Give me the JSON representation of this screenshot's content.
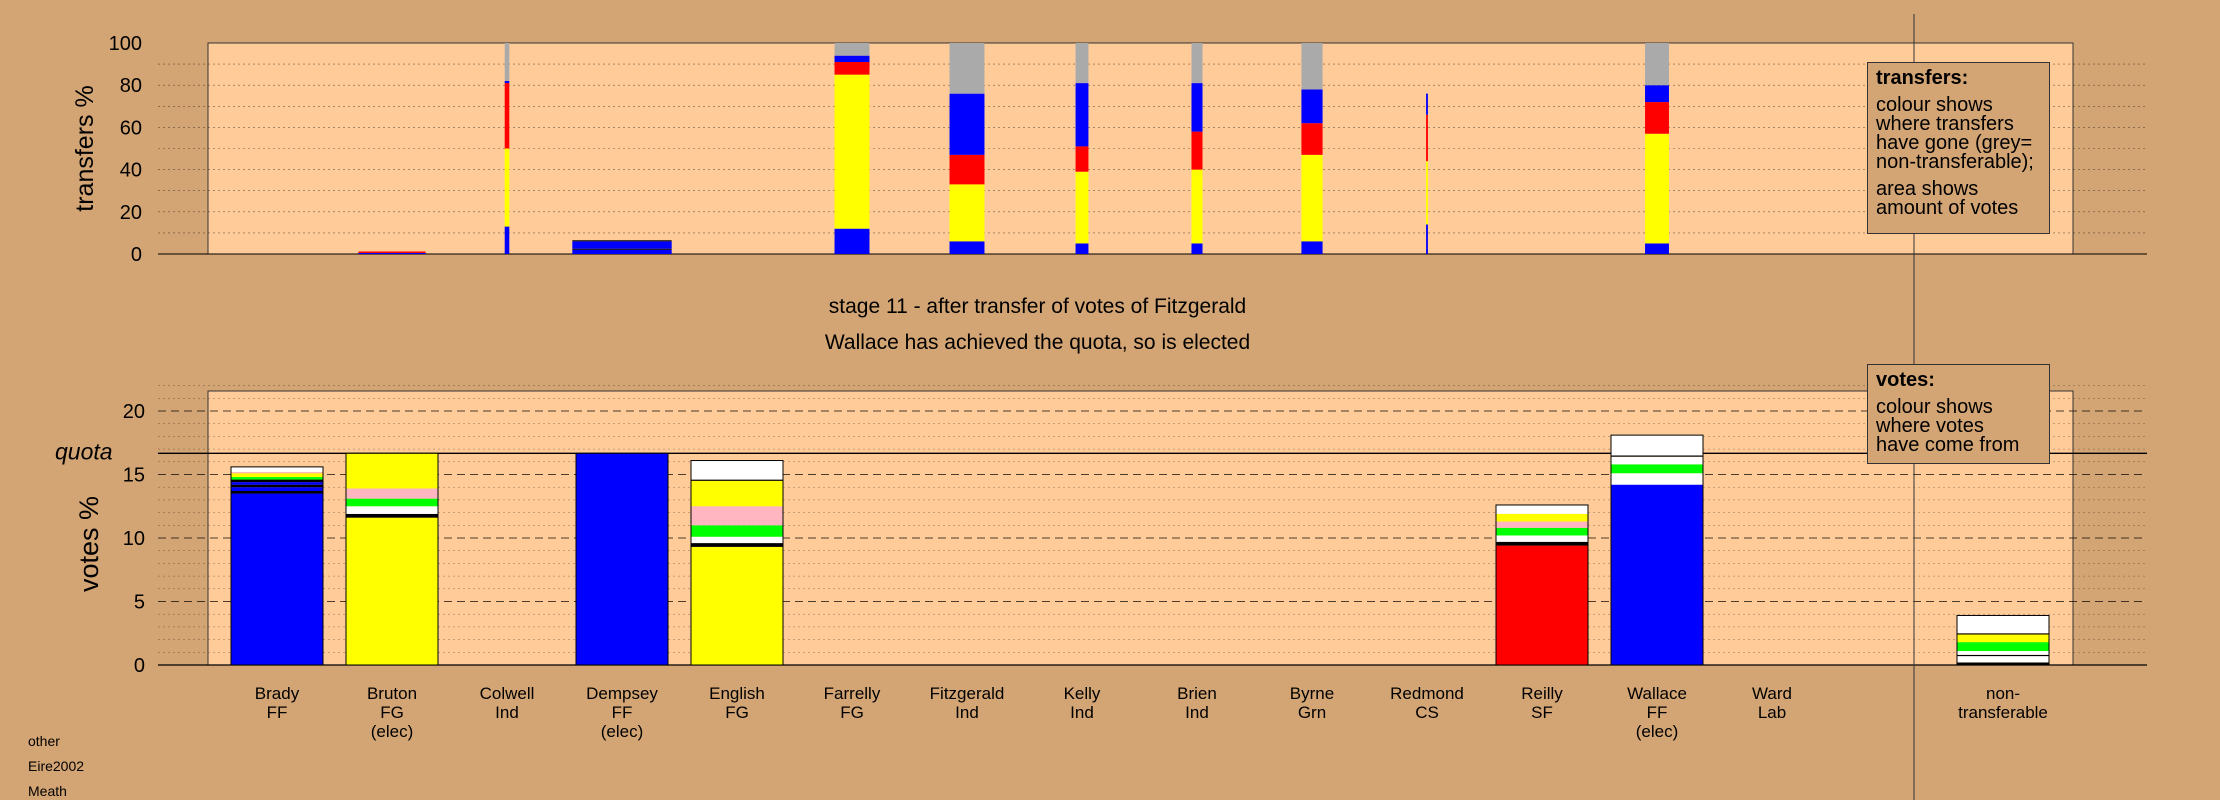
{
  "chart_data": [
    {
      "type": "bar",
      "stacked": true,
      "panel": "transfers",
      "ylabel": "transfers %",
      "ylim": [
        0,
        100
      ],
      "yticks": [
        0,
        20,
        40,
        60,
        80,
        100
      ],
      "grid": "dotted horizontal",
      "categories": [
        "Brady",
        "Bruton",
        "Colwell",
        "Dempsey",
        "English",
        "Farrelly",
        "Fitzgerald",
        "Kelly",
        "Brien",
        "Byrne",
        "Redmond",
        "Reilly",
        "Wallace",
        "Ward"
      ],
      "bar_widths_relative": [
        0,
        0.73,
        0.05,
        1.08,
        0,
        0.38,
        0.38,
        0.14,
        0.12,
        0.23,
        0.02,
        0,
        0.26,
        0
      ],
      "segments": [
        [],
        [
          {
            "color": "#0000ff",
            "value": 0.5
          },
          {
            "color": "#ff0000",
            "value": 0.7
          }
        ],
        [
          {
            "color": "#0000ff",
            "value": 13
          },
          {
            "color": "#ffff00",
            "value": 37
          },
          {
            "color": "#ff0000",
            "value": 31
          },
          {
            "color": "#0000ff",
            "value": 1
          },
          {
            "color": "#aaaaaa",
            "value": 18
          }
        ],
        [
          {
            "color": "#0000ff",
            "value": 2
          },
          {
            "color": "#000000",
            "value": 0.5
          },
          {
            "color": "#0000ff",
            "value": 3.5
          },
          {
            "color": "#000000",
            "value": 0.5
          }
        ],
        [],
        [
          {
            "color": "#0000ff",
            "value": 12
          },
          {
            "color": "#ffff00",
            "value": 73
          },
          {
            "color": "#ff0000",
            "value": 6
          },
          {
            "color": "#0000ff",
            "value": 3
          },
          {
            "color": "#aaaaaa",
            "value": 6
          }
        ],
        [
          {
            "color": "#0000ff",
            "value": 6
          },
          {
            "color": "#ffff00",
            "value": 27
          },
          {
            "color": "#ff0000",
            "value": 14
          },
          {
            "color": "#0000ff",
            "value": 29
          },
          {
            "color": "#aaaaaa",
            "value": 24
          }
        ],
        [
          {
            "color": "#0000ff",
            "value": 5
          },
          {
            "color": "#ffff00",
            "value": 34
          },
          {
            "color": "#ff0000",
            "value": 12
          },
          {
            "color": "#0000ff",
            "value": 30
          },
          {
            "color": "#aaaaaa",
            "value": 19
          }
        ],
        [
          {
            "color": "#0000ff",
            "value": 5
          },
          {
            "color": "#ffff00",
            "value": 35
          },
          {
            "color": "#ff0000",
            "value": 18
          },
          {
            "color": "#0000ff",
            "value": 23
          },
          {
            "color": "#aaaaaa",
            "value": 19
          }
        ],
        [
          {
            "color": "#0000ff",
            "value": 6
          },
          {
            "color": "#ffff00",
            "value": 41
          },
          {
            "color": "#ff0000",
            "value": 15
          },
          {
            "color": "#0000ff",
            "value": 16
          },
          {
            "color": "#aaaaaa",
            "value": 22
          }
        ],
        [
          {
            "color": "#0000ff",
            "value": 14
          },
          {
            "color": "#ffff00",
            "value": 30
          },
          {
            "color": "#ff0000",
            "value": 22
          },
          {
            "color": "#0000ff",
            "value": 10
          }
        ],
        [],
        [
          {
            "color": "#0000ff",
            "value": 5
          },
          {
            "color": "#ffff00",
            "value": 52
          },
          {
            "color": "#ff0000",
            "value": 15
          },
          {
            "color": "#0000ff",
            "value": 8
          },
          {
            "color": "#aaaaaa",
            "value": 20
          }
        ],
        []
      ]
    },
    {
      "type": "bar",
      "stacked": true,
      "panel": "votes",
      "ylabel": "votes %",
      "ylim": [
        0,
        22
      ],
      "yticks": [
        0,
        5,
        10,
        15,
        20
      ],
      "quota": 16.67,
      "quota_label": "quota",
      "grid": "dotted minor, dashed major",
      "categories": [
        "Brady",
        "Bruton",
        "Colwell",
        "Dempsey",
        "English",
        "Farrelly",
        "Fitzgerald",
        "Kelly",
        "Brien",
        "Byrne",
        "Redmond",
        "Reilly",
        "Wallace",
        "Ward",
        "non-transferable"
      ],
      "segments": [
        [
          {
            "color": "#0000ff",
            "value": 13.5
          },
          {
            "color": "#000000",
            "value": 0.2
          },
          {
            "color": "#0000ff",
            "value": 0.3
          },
          {
            "color": "#000000",
            "value": 0.2
          },
          {
            "color": "#0000ff",
            "value": 0.2
          },
          {
            "color": "#000000",
            "value": 0.2
          },
          {
            "color": "#00ff00",
            "value": 0.2
          },
          {
            "color": "#ffff00",
            "value": 0.3
          },
          {
            "color": "#ffb6c1",
            "value": 0.1
          },
          {
            "color": "#ffffff",
            "value": 0.4
          }
        ],
        [
          {
            "color": "#ffff00",
            "value": 11.6
          },
          {
            "color": "#000000",
            "value": 0.3
          },
          {
            "color": "#ffffff",
            "value": 0.6
          },
          {
            "color": "#00ff00",
            "value": 0.6
          },
          {
            "color": "#ffb6c1",
            "value": 0.8
          },
          {
            "color": "#ffff00",
            "value": 2.77
          }
        ],
        [],
        [
          {
            "color": "#0000ff",
            "value": 16.67
          }
        ],
        [
          {
            "color": "#ffff00",
            "value": 9.3
          },
          {
            "color": "#000000",
            "value": 0.3
          },
          {
            "color": "#ffffff",
            "value": 0.5
          },
          {
            "color": "#00ff00",
            "value": 0.9
          },
          {
            "color": "#ffb6c1",
            "value": 1.5
          },
          {
            "color": "#ffff00",
            "value": 2
          },
          {
            "color": "#000000",
            "value": 0.1
          },
          {
            "color": "#ffffff",
            "value": 1.5
          }
        ],
        [],
        [],
        [],
        [],
        [],
        [],
        [
          {
            "color": "#ff0000",
            "value": 9.4
          },
          {
            "color": "#000000",
            "value": 0.3
          },
          {
            "color": "#ffffff",
            "value": 0.5
          },
          {
            "color": "#00ff00",
            "value": 0.6
          },
          {
            "color": "#ffb6c1",
            "value": 0.5
          },
          {
            "color": "#ffff00",
            "value": 0.6
          },
          {
            "color": "#ffffff",
            "value": 0.7
          }
        ],
        [
          {
            "color": "#0000ff",
            "value": 14.2
          },
          {
            "color": "#ffffff",
            "value": 0.9
          },
          {
            "color": "#00ff00",
            "value": 0.7
          },
          {
            "color": "#ffffff",
            "value": 0.6
          },
          {
            "color": "#000000",
            "value": 0.1
          },
          {
            "color": "#ffffff",
            "value": 1.6
          }
        ],
        [],
        [
          {
            "color": "#000000",
            "value": 0.2
          },
          {
            "color": "#ffffff",
            "value": 0.5
          },
          {
            "color": "#000000",
            "value": 0.1
          },
          {
            "color": "#ffffff",
            "value": 0.3
          },
          {
            "color": "#00ff00",
            "value": 0.7
          },
          {
            "color": "#ffff00",
            "value": 0.6
          },
          {
            "color": "#000000",
            "value": 0.1
          },
          {
            "color": "#ffffff",
            "value": 1.4
          }
        ]
      ]
    }
  ],
  "candidates": [
    {
      "name": "Brady",
      "party": "FF",
      "status": ""
    },
    {
      "name": "Bruton",
      "party": "FG",
      "status": "(elec)"
    },
    {
      "name": "Colwell",
      "party": "Ind",
      "status": ""
    },
    {
      "name": "Dempsey",
      "party": "FF",
      "status": "(elec)"
    },
    {
      "name": "English",
      "party": "FG",
      "status": ""
    },
    {
      "name": "Farrelly",
      "party": "FG",
      "status": ""
    },
    {
      "name": "Fitzgerald",
      "party": "Ind",
      "status": ""
    },
    {
      "name": "Kelly",
      "party": "Ind",
      "status": ""
    },
    {
      "name": "Brien",
      "party": "Ind",
      "status": ""
    },
    {
      "name": "Byrne",
      "party": "Grn",
      "status": ""
    },
    {
      "name": "Redmond",
      "party": "CS",
      "status": ""
    },
    {
      "name": "Reilly",
      "party": "SF",
      "status": ""
    },
    {
      "name": "Wallace",
      "party": "FF",
      "status": "(elec)"
    },
    {
      "name": "Ward",
      "party": "Lab",
      "status": ""
    }
  ],
  "nontransferable_label": [
    "non-",
    "transferable"
  ],
  "stage_caption": "stage 11 - after transfer of votes of Fitzgerald",
  "result_caption": "Wallace has achieved the quota, so is elected",
  "legend_transfers": {
    "title": "transfers:",
    "body1": "colour shows\nwhere transfers\nhave gone (grey=\nnon-transferable);",
    "body2": "area shows\namount of votes"
  },
  "legend_votes": {
    "title": "votes:",
    "body1": "colour shows\nwhere votes\nhave come from"
  },
  "footer": {
    "line1": "other",
    "line2": "Eire2002",
    "line3": "Meath"
  },
  "colors": {
    "background": "#d4a574",
    "plot_area": "#ffcc99",
    "FF": "#0000ff",
    "FG": "#ffff00",
    "SF": "#ff0000",
    "Lab": "#ff0000",
    "nontransferable": "#aaaaaa"
  }
}
